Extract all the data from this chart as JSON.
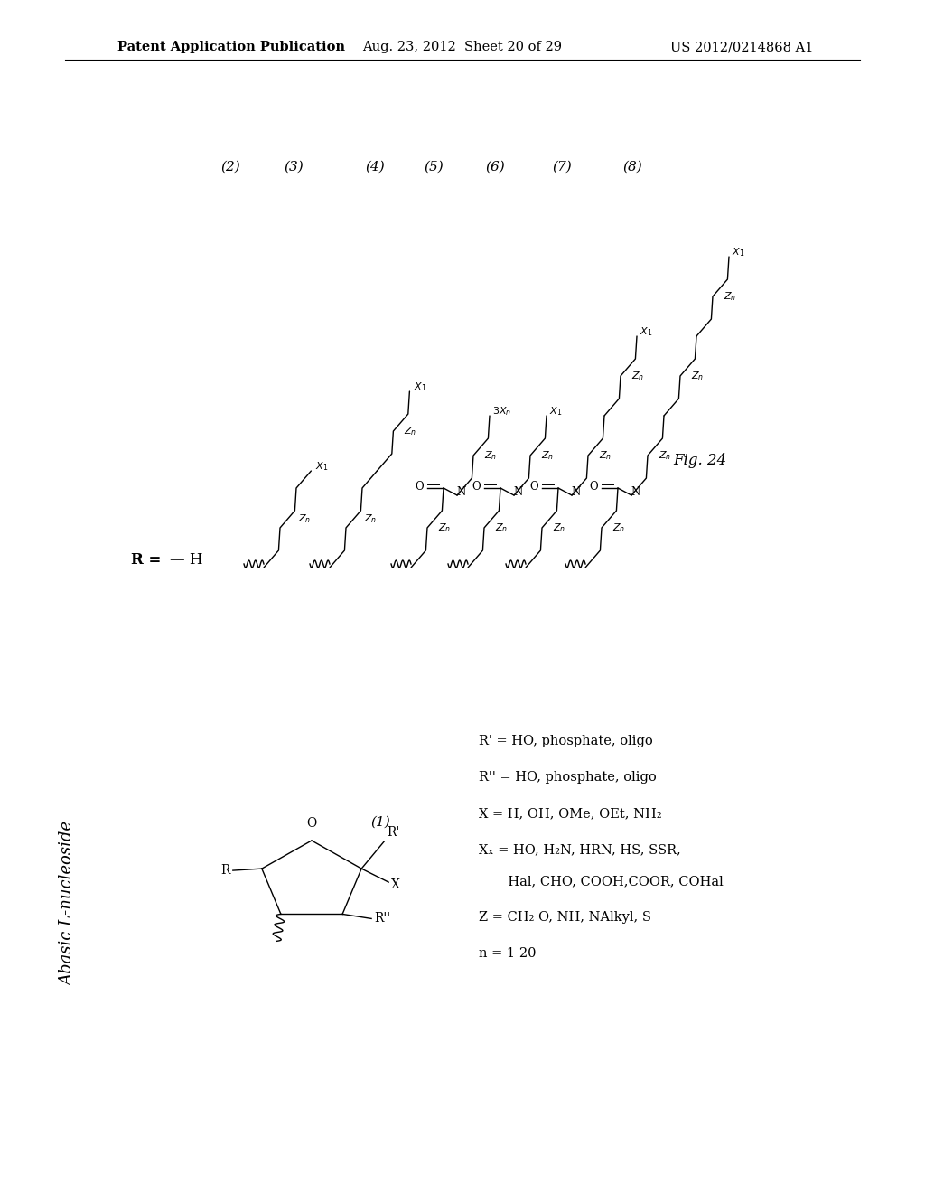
{
  "background_color": "#ffffff",
  "header_left": "Patent Application Publication",
  "header_center": "Aug. 23, 2012  Sheet 20 of 29",
  "header_right": "US 2012/0214868 A1",
  "fig_label": "Fig. 24",
  "section_title": "Abasic L-nucleoside",
  "definitions_lines": [
    "R' = HO, phosphate, oligo",
    "R'' = HO, phosphate, oligo",
    "X = H, OH, OMe, OEt, NH₂",
    "Xₓ = HO, H₂N, HRN, HS, SSR,",
    "       Hal, CHO, COOH,COOR, COHal",
    "Z = CH₂ O, NH, NAlkyl, S",
    "n = 1-20"
  ]
}
